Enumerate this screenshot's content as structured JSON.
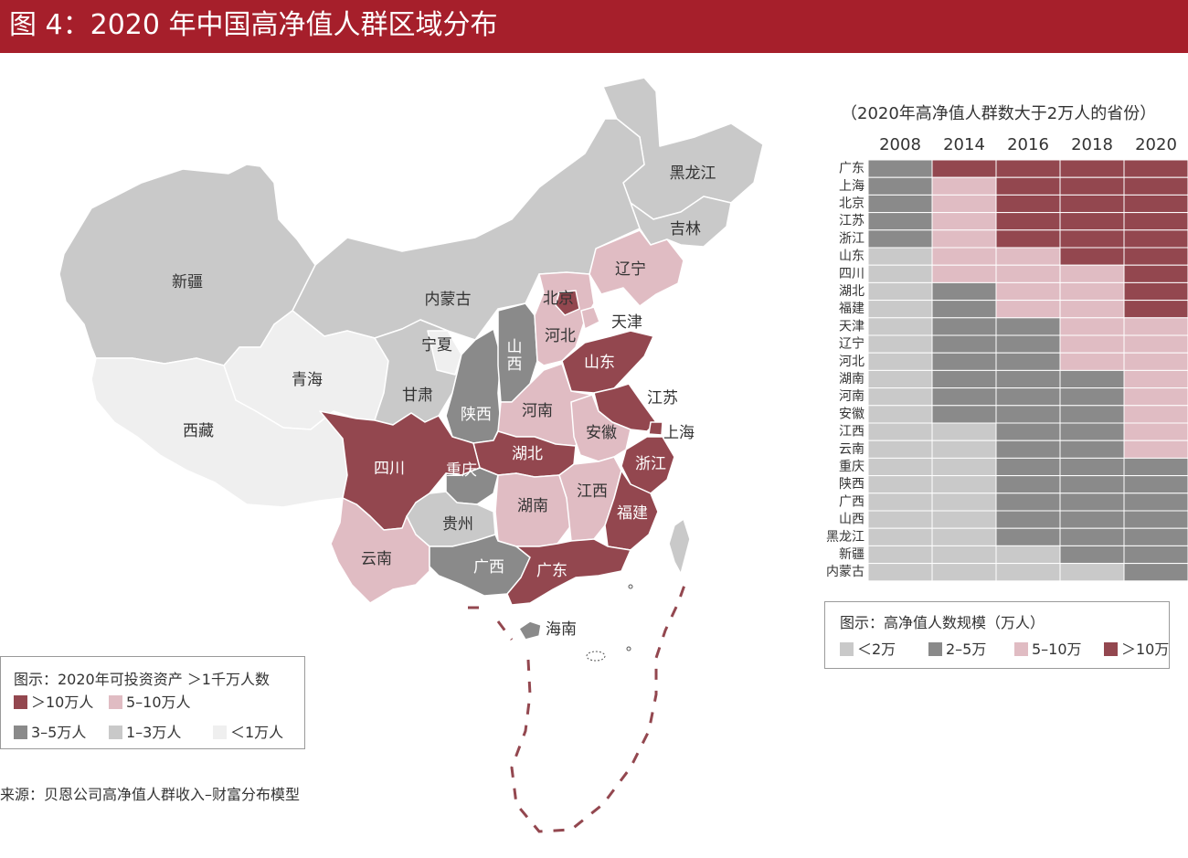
{
  "title": "图 4：2020 年中国高净值人群区域分布",
  "map": {
    "legend": {
      "title": "图示：2020年可投资资产 ＞1千万人数",
      "items": [
        {
          "label": "＞10万人",
          "color": "#93474f"
        },
        {
          "label": "5–10万人",
          "color": "#e0bcc3"
        },
        {
          "label": "3–5万人",
          "color": "#8a8a8a"
        },
        {
          "label": "1–3万人",
          "color": "#c9c9c9"
        },
        {
          "label": "＜1万人",
          "color": "#efefef"
        }
      ]
    },
    "labels": {
      "heilongjiang": "黑龙江",
      "jilin": "吉林",
      "liaoning": "辽宁",
      "neimenggu": "内蒙古",
      "xinjiang": "新疆",
      "beijing": "北京",
      "tianjin": "天津",
      "hebei": "河北",
      "shanxi": "山西",
      "ningxia": "宁夏",
      "qinghai": "青海",
      "gansu": "甘肃",
      "shaanxi": "陕西",
      "shandong": "山东",
      "henan": "河南",
      "jiangsu": "江苏",
      "xizang": "西藏",
      "sichuan": "四川",
      "hubei": "湖北",
      "anhui": "安徽",
      "shanghai": "上海",
      "zhejiang": "浙江",
      "chongqing": "重庆",
      "hunan": "湖南",
      "jiangxi": "江西",
      "guizhou": "贵州",
      "fujian": "福建",
      "yunnan": "云南",
      "guangxi": "广西",
      "guangdong": "广东",
      "hainan": "海南"
    }
  },
  "source": "来源：贝恩公司高净值人群收入–财富分布模型",
  "chart_data": {
    "type": "heatmap",
    "subtitle": "（2020年高净值人群数大于2万人的省份）",
    "x": [
      "2008",
      "2014",
      "2016",
      "2018",
      "2020"
    ],
    "y": [
      "广东",
      "上海",
      "北京",
      "江苏",
      "浙江",
      "山东",
      "四川",
      "湖北",
      "福建",
      "天津",
      "辽宁",
      "河北",
      "湖南",
      "河南",
      "安徽",
      "江西",
      "云南",
      "重庆",
      "陕西",
      "广西",
      "山西",
      "黑龙江",
      "新疆",
      "内蒙古"
    ],
    "levels": [
      "＜2万",
      "2–5万",
      "5–10万",
      "＞10万"
    ],
    "level_colors": [
      "#c9c9c9",
      "#8a8a8a",
      "#e0bcc3",
      "#93474f"
    ],
    "cells": [
      [
        1,
        3,
        3,
        3,
        3
      ],
      [
        1,
        2,
        3,
        3,
        3
      ],
      [
        1,
        2,
        3,
        3,
        3
      ],
      [
        1,
        2,
        3,
        3,
        3
      ],
      [
        1,
        2,
        3,
        3,
        3
      ],
      [
        0,
        2,
        2,
        3,
        3
      ],
      [
        0,
        2,
        2,
        2,
        3
      ],
      [
        0,
        1,
        2,
        2,
        3
      ],
      [
        0,
        1,
        2,
        2,
        3
      ],
      [
        0,
        1,
        1,
        2,
        2
      ],
      [
        0,
        1,
        1,
        2,
        2
      ],
      [
        0,
        1,
        1,
        2,
        2
      ],
      [
        0,
        1,
        1,
        1,
        2
      ],
      [
        0,
        1,
        1,
        1,
        2
      ],
      [
        0,
        1,
        1,
        1,
        2
      ],
      [
        0,
        0,
        1,
        1,
        2
      ],
      [
        0,
        0,
        1,
        1,
        2
      ],
      [
        0,
        0,
        1,
        1,
        1
      ],
      [
        0,
        0,
        1,
        1,
        1
      ],
      [
        0,
        0,
        1,
        1,
        1
      ],
      [
        0,
        0,
        1,
        1,
        1
      ],
      [
        0,
        0,
        1,
        1,
        1
      ],
      [
        0,
        0,
        0,
        1,
        1
      ],
      [
        0,
        0,
        0,
        0,
        1
      ]
    ],
    "legend_title": "图示：高净值人数规模（万人）"
  }
}
